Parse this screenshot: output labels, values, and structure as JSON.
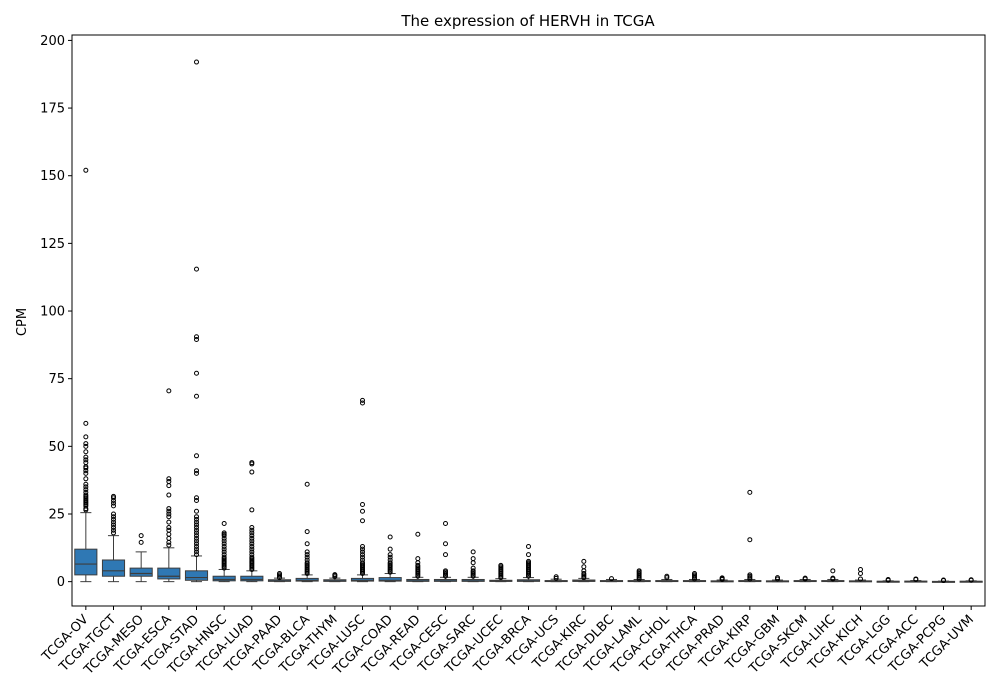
{
  "chart_data": {
    "type": "box",
    "title": "The expression of HERVH in TCGA",
    "xlabel": "",
    "ylabel": "CPM",
    "ylim": [
      -9,
      202
    ],
    "yticks": [
      0,
      25,
      50,
      75,
      100,
      125,
      150,
      175,
      200
    ],
    "grid": false,
    "box_color": "#2f78b4",
    "categories": [
      "TCGA-OV",
      "TCGA-TGCT",
      "TCGA-MESO",
      "TCGA-ESCA",
      "TCGA-STAD",
      "TCGA-HNSC",
      "TCGA-LUAD",
      "TCGA-PAAD",
      "TCGA-BLCA",
      "TCGA-THYM",
      "TCGA-LUSC",
      "TCGA-COAD",
      "TCGA-READ",
      "TCGA-CESC",
      "TCGA-SARC",
      "TCGA-UCEC",
      "TCGA-BRCA",
      "TCGA-UCS",
      "TCGA-KIRC",
      "TCGA-DLBC",
      "TCGA-LAML",
      "TCGA-CHOL",
      "TCGA-THCA",
      "TCGA-PRAD",
      "TCGA-KIRP",
      "TCGA-GBM",
      "TCGA-SKCM",
      "TCGA-LIHC",
      "TCGA-KICH",
      "TCGA-LGG",
      "TCGA-ACC",
      "TCGA-PCPG",
      "TCGA-UVM"
    ],
    "boxes": [
      {
        "whislo": 0,
        "q1": 2.5,
        "med": 6.5,
        "q3": 12,
        "whishi": 25.5,
        "fliers": [
          26.5,
          27,
          28,
          28.5,
          29,
          29.5,
          30,
          30.5,
          31,
          31.5,
          32,
          33,
          34,
          35,
          36,
          38,
          40,
          41,
          42,
          42.5,
          44,
          45,
          46,
          48,
          50,
          51,
          53.5,
          58.5,
          152
        ]
      },
      {
        "whislo": 0,
        "q1": 2,
        "med": 4,
        "q3": 8,
        "whishi": 17,
        "fliers": [
          18,
          19,
          20,
          21,
          22,
          23,
          24,
          25,
          28,
          29,
          30,
          31,
          31.5
        ]
      },
      {
        "whislo": 0,
        "q1": 2,
        "med": 3,
        "q3": 5,
        "whishi": 11,
        "fliers": [
          14.5,
          17
        ]
      },
      {
        "whislo": 0,
        "q1": 1,
        "med": 2,
        "q3": 5,
        "whishi": 12.5,
        "fliers": [
          13.5,
          14.5,
          16,
          17.5,
          19,
          20,
          22,
          24,
          25,
          26,
          27,
          32,
          35.5,
          37,
          38,
          70.5
        ]
      },
      {
        "whislo": 0,
        "q1": 0.5,
        "med": 1.5,
        "q3": 4,
        "whishi": 9.5,
        "fliers": [
          10,
          11,
          12,
          13,
          14,
          15,
          16,
          17,
          18,
          19,
          20,
          21,
          22,
          23,
          24,
          26,
          30,
          31,
          40,
          41,
          46.5,
          68.5,
          77,
          89.5,
          90.5,
          115.5,
          192
        ]
      },
      {
        "whislo": 0,
        "q1": 0.3,
        "med": 0.8,
        "q3": 2,
        "whishi": 4.5,
        "fliers": [
          5,
          5.5,
          6,
          6.5,
          7,
          7.5,
          8,
          8.5,
          9,
          10,
          11,
          12,
          13,
          14,
          15,
          16,
          17,
          17.5,
          18,
          21.5
        ]
      },
      {
        "whislo": 0,
        "q1": 0.3,
        "med": 0.8,
        "q3": 2,
        "whishi": 4,
        "fliers": [
          4.5,
          5,
          5.5,
          6,
          6.5,
          7,
          7.5,
          8,
          8.5,
          9,
          10,
          11,
          12,
          13,
          14,
          15,
          16,
          17,
          18,
          19,
          20,
          26.5,
          40.5,
          43.5,
          44
        ]
      },
      {
        "whislo": 0,
        "q1": 0.1,
        "med": 0.3,
        "q3": 0.7,
        "whishi": 1.3,
        "fliers": [
          1.5,
          2,
          2.5,
          3
        ]
      },
      {
        "whislo": 0,
        "q1": 0.2,
        "med": 0.5,
        "q3": 1.2,
        "whishi": 2.5,
        "fliers": [
          3,
          3.5,
          4,
          4.5,
          5,
          5.5,
          6,
          6.5,
          7,
          8,
          9,
          10,
          11,
          14,
          18.5,
          36
        ]
      },
      {
        "whislo": 0,
        "q1": 0.1,
        "med": 0.3,
        "q3": 0.7,
        "whishi": 1.3,
        "fliers": [
          1.8,
          2.3,
          2.6
        ]
      },
      {
        "whislo": 0,
        "q1": 0.2,
        "med": 0.5,
        "q3": 1.2,
        "whishi": 2.5,
        "fliers": [
          3,
          3.5,
          4,
          4.5,
          5,
          5.5,
          6,
          6.5,
          7,
          8,
          9,
          10,
          11,
          12,
          13,
          22.5,
          26,
          28.5,
          66,
          67
        ]
      },
      {
        "whislo": 0,
        "q1": 0.2,
        "med": 0.5,
        "q3": 1.5,
        "whishi": 3,
        "fliers": [
          3.5,
          4,
          4.5,
          5,
          5.5,
          6,
          6.5,
          7,
          8,
          9,
          10,
          12,
          16.5
        ]
      },
      {
        "whislo": 0,
        "q1": 0.1,
        "med": 0.3,
        "q3": 0.8,
        "whishi": 1.6,
        "fliers": [
          2,
          2.5,
          3,
          3.5,
          4,
          4.5,
          5,
          5.5,
          6,
          7,
          8.5,
          17.5
        ]
      },
      {
        "whislo": 0,
        "q1": 0.1,
        "med": 0.3,
        "q3": 0.8,
        "whishi": 1.6,
        "fliers": [
          2,
          2.5,
          3,
          3.5,
          4,
          10,
          14,
          21.5
        ]
      },
      {
        "whislo": 0,
        "q1": 0.1,
        "med": 0.3,
        "q3": 0.8,
        "whishi": 1.6,
        "fliers": [
          2,
          2.5,
          3,
          3.5,
          4,
          5,
          7,
          8.5,
          11
        ]
      },
      {
        "whislo": 0,
        "q1": 0.1,
        "med": 0.2,
        "q3": 0.5,
        "whishi": 1.1,
        "fliers": [
          1.5,
          2,
          2.5,
          3,
          3.5,
          4,
          4.5,
          5,
          5.5,
          6
        ]
      },
      {
        "whislo": 0,
        "q1": 0.1,
        "med": 0.3,
        "q3": 0.7,
        "whishi": 1.5,
        "fliers": [
          2,
          2.5,
          3,
          3.5,
          4,
          4.5,
          5,
          5.5,
          6,
          6.5,
          7,
          7.5,
          10,
          13
        ]
      },
      {
        "whislo": 0,
        "q1": 0.05,
        "med": 0.15,
        "q3": 0.4,
        "whishi": 0.9,
        "fliers": [
          1.2,
          1.8
        ]
      },
      {
        "whislo": 0,
        "q1": 0.1,
        "med": 0.2,
        "q3": 0.6,
        "whishi": 1.2,
        "fliers": [
          1.5,
          2,
          2.5,
          3,
          4,
          5.5,
          7.5
        ]
      },
      {
        "whislo": 0,
        "q1": 0.05,
        "med": 0.15,
        "q3": 0.4,
        "whishi": 0.8,
        "fliers": [
          1.1
        ]
      },
      {
        "whislo": 0,
        "q1": 0.05,
        "med": 0.15,
        "q3": 0.4,
        "whishi": 0.8,
        "fliers": [
          1,
          1.5,
          2,
          2.5,
          3,
          3.5,
          4
        ]
      },
      {
        "whislo": 0,
        "q1": 0.05,
        "med": 0.15,
        "q3": 0.4,
        "whishi": 0.8,
        "fliers": [
          1.5,
          2
        ]
      },
      {
        "whislo": 0,
        "q1": 0.05,
        "med": 0.15,
        "q3": 0.4,
        "whishi": 0.8,
        "fliers": [
          1,
          1.5,
          2,
          2.5,
          3
        ]
      },
      {
        "whislo": 0,
        "q1": 0.05,
        "med": 0.1,
        "q3": 0.3,
        "whishi": 0.6,
        "fliers": [
          0.8,
          1.1,
          1.4
        ]
      },
      {
        "whislo": 0,
        "q1": 0.05,
        "med": 0.15,
        "q3": 0.4,
        "whishi": 0.8,
        "fliers": [
          1,
          1.5,
          2,
          2.5,
          15.5,
          33
        ]
      },
      {
        "whislo": 0,
        "q1": 0.05,
        "med": 0.1,
        "q3": 0.3,
        "whishi": 0.6,
        "fliers": [
          1,
          1.5
        ]
      },
      {
        "whislo": 0,
        "q1": 0.05,
        "med": 0.15,
        "q3": 0.4,
        "whishi": 0.8,
        "fliers": [
          1,
          1.3
        ]
      },
      {
        "whislo": 0,
        "q1": 0.05,
        "med": 0.15,
        "q3": 0.4,
        "whishi": 0.8,
        "fliers": [
          1,
          1.3,
          4
        ]
      },
      {
        "whislo": 0,
        "q1": 0.05,
        "med": 0.15,
        "q3": 0.3,
        "whishi": 0.6,
        "fliers": [
          1,
          3,
          4.5
        ]
      },
      {
        "whislo": 0,
        "q1": 0.02,
        "med": 0.05,
        "q3": 0.15,
        "whishi": 0.3,
        "fliers": [
          0.5,
          0.8
        ]
      },
      {
        "whislo": 0,
        "q1": 0.02,
        "med": 0.05,
        "q3": 0.2,
        "whishi": 0.4,
        "fliers": [
          0.8,
          1
        ]
      },
      {
        "whislo": 0,
        "q1": 0.01,
        "med": 0.03,
        "q3": 0.1,
        "whishi": 0.2,
        "fliers": [
          0.4,
          0.6
        ]
      },
      {
        "whislo": 0,
        "q1": 0.02,
        "med": 0.05,
        "q3": 0.15,
        "whishi": 0.3,
        "fliers": [
          0.5,
          0.7
        ]
      }
    ]
  }
}
